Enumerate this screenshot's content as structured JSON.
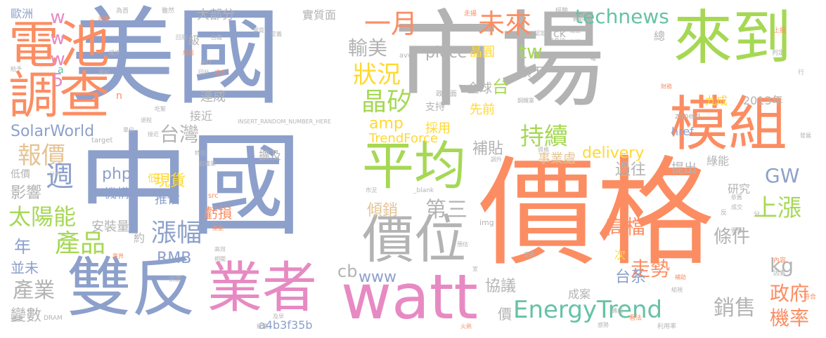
{
  "words": [
    {
      "text": "美國",
      "color": "#8da0cb"
    },
    {
      "text": "市場",
      "color": "#b3b3b3"
    },
    {
      "text": "價格",
      "color": "#fc8d62"
    },
    {
      "text": "中國",
      "color": "#8da0cb"
    },
    {
      "text": "雙反",
      "color": "#8da0cb"
    },
    {
      "text": "業者",
      "color": "#e78ac3"
    },
    {
      "text": "watt",
      "color": "#e78ac3"
    },
    {
      "text": "來到",
      "color": "#a6d854"
    },
    {
      "text": "模組",
      "color": "#fc8d62"
    },
    {
      "text": "電池",
      "color": "#fc8d62"
    },
    {
      "text": "調查",
      "color": "#fc8d62"
    },
    {
      "text": "平均",
      "color": "#a6d854"
    },
    {
      "text": "價位",
      "color": "#b3b3b3"
    },
    {
      "text": "EnergyTrend",
      "color": "#66c2a5"
    },
    {
      "text": "一月",
      "color": "#fc8d62"
    },
    {
      "text": "未來",
      "color": "#fc8d62"
    },
    {
      "text": "technews",
      "color": "#66c2a5"
    },
    {
      "text": "www5",
      "color": "#e78ac3"
    },
    {
      "text": "輸美",
      "color": "#b3b3b3"
    },
    {
      "text": "狀況",
      "color": "#ffd92f"
    },
    {
      "text": "晶矽",
      "color": "#a6d854"
    },
    {
      "text": "SolarWorld",
      "color": "#8da0cb"
    },
    {
      "text": "台灣",
      "color": "#b3b3b3"
    },
    {
      "text": "報價",
      "color": "#e5c494"
    },
    {
      "text": "週",
      "color": "#8da0cb"
    },
    {
      "text": "持續",
      "color": "#a6d854"
    },
    {
      "text": "amp",
      "color": "#ffd92f"
    },
    {
      "text": "delivery",
      "color": "#ffd92f"
    },
    {
      "text": "GW",
      "color": "#8da0cb"
    },
    {
      "text": "kg",
      "color": "#b3b3b3"
    },
    {
      "text": "上漲",
      "color": "#a6d854"
    },
    {
      "text": "太陽能",
      "color": "#a6d854"
    },
    {
      "text": "產品",
      "color": "#a6d854"
    },
    {
      "text": "漲幅",
      "color": "#8da0cb"
    },
    {
      "text": "產業",
      "color": "#b3b3b3"
    },
    {
      "text": "銷售",
      "color": "#b3b3b3"
    },
    {
      "text": "政府",
      "color": "#fc8d62"
    },
    {
      "text": "機率",
      "color": "#fc8d62"
    },
    {
      "text": "高檔",
      "color": "#fc8d62"
    },
    {
      "text": "走勢",
      "color": "#fc8d62"
    },
    {
      "text": "條件",
      "color": "#b3b3b3"
    },
    {
      "text": "piece",
      "color": "#b3b3b3"
    },
    {
      "text": "第三",
      "color": "#b3b3b3"
    },
    {
      "text": "傾銷",
      "color": "#e5c494"
    },
    {
      "text": "補貼",
      "color": "#b3b3b3"
    },
    {
      "text": "協議",
      "color": "#b3b3b3"
    },
    {
      "text": "www",
      "color": "#8da0cb"
    },
    {
      "text": "cb",
      "color": "#b3b3b3"
    },
    {
      "text": "RMB",
      "color": "#8da0cb"
    },
    {
      "text": "影響",
      "color": "#b3b3b3"
    },
    {
      "text": "變數",
      "color": "#b3b3b3"
    },
    {
      "text": "php",
      "color": "#8da0cb"
    },
    {
      "text": "過往",
      "color": "#b3b3b3"
    },
    {
      "text": "台系",
      "color": "#8da0cb"
    },
    {
      "text": "現貨",
      "color": "#ffd92f"
    },
    {
      "text": "推估",
      "color": "#8da0cb"
    },
    {
      "text": "機構",
      "color": "#8da0cb"
    },
    {
      "text": "虧損",
      "color": "#fc8d62"
    },
    {
      "text": "大部分",
      "color": "#b3b3b3"
    },
    {
      "text": "晶圓",
      "color": "#ffd92f"
    },
    {
      "text": "tw",
      "color": "#a6d854"
    },
    {
      "text": "旗下",
      "color": "#b3b3b3"
    },
    {
      "text": "台",
      "color": "#a6d854"
    },
    {
      "text": "全球",
      "color": "#b3b3b3"
    },
    {
      "text": "先前",
      "color": "#ffd92f"
    },
    {
      "text": "採用",
      "color": "#ffd92f"
    },
    {
      "text": "支持",
      "color": "#b3b3b3"
    },
    {
      "text": "TrendForce",
      "color": "#ffd92f"
    },
    {
      "text": "事業處",
      "color": "#e5c494"
    },
    {
      "text": "達成",
      "color": "#b3b3b3"
    },
    {
      "text": "接近",
      "color": "#b3b3b3"
    },
    {
      "text": "擴及",
      "color": "#b3b3b3"
    },
    {
      "text": "安裝量",
      "color": "#b3b3b3"
    },
    {
      "text": "年",
      "color": "#8da0cb"
    },
    {
      "text": "並未",
      "color": "#8da0cb"
    },
    {
      "text": "綠能",
      "color": "#b3b3b3"
    },
    {
      "text": "提出",
      "color": "#b3b3b3"
    },
    {
      "text": "研究",
      "color": "#b3b3b3"
    },
    {
      "text": "成案",
      "color": "#b3b3b3"
    },
    {
      "text": "價",
      "color": "#b3b3b3"
    },
    {
      "text": "次",
      "color": "#ffd92f"
    },
    {
      "text": "a4b3f35b",
      "color": "#8da0cb"
    },
    {
      "text": "href",
      "color": "#8da0cb"
    },
    {
      "text": "九成",
      "color": "#ffd92f"
    },
    {
      "text": "2013年",
      "color": "#b3b3b3"
    },
    {
      "text": "實質面",
      "color": "#b3b3b3"
    },
    {
      "text": "ck",
      "color": "#b3b3b3"
    },
    {
      "text": "總",
      "color": "#b3b3b3"
    },
    {
      "text": "歐洲",
      "color": "#8da0cb"
    },
    {
      "text": "級",
      "color": "#b3b3b3"
    },
    {
      "text": "約",
      "color": "#b3b3b3"
    },
    {
      "text": "低價",
      "color": "#b3b3b3"
    },
    {
      "text": "低",
      "color": "#ffd92f"
    },
    {
      "text": "n",
      "color": "#fc8d62"
    },
    {
      "text": "a",
      "color": "#66c2a5"
    },
    {
      "text": "INSERT_RANDOM_NUMBER_HERE",
      "color": "#b3b3b3"
    },
    {
      "text": "target",
      "color": "#b3b3b3"
    },
    {
      "text": "_blank",
      "color": "#b3b3b3"
    },
    {
      "text": "src",
      "color": "#fc8d62"
    },
    {
      "text": "img",
      "color": "#b3b3b3"
    },
    {
      "text": "zoneid",
      "color": "#b3b3b3"
    },
    {
      "text": "avw",
      "color": "#b3b3b3"
    },
    {
      "text": "DRAM",
      "color": "#b3b3b3"
    },
    {
      "text": "政策面",
      "color": "#b3b3b3"
    },
    {
      "text": "為首",
      "color": "#b3b3b3"
    },
    {
      "text": "接近",
      "color": "#b3b3b3"
    },
    {
      "text": "雖然",
      "color": "#b3b3b3"
    },
    {
      "text": "經驗",
      "color": "#b3b3b3"
    },
    {
      "text": "走揚",
      "color": "#fc8d62"
    },
    {
      "text": "上揚",
      "color": "#fc8d62"
    },
    {
      "text": "判定",
      "color": "#b3b3b3"
    },
    {
      "text": "行",
      "color": "#b3b3b3"
    },
    {
      "text": "內容",
      "color": "#fc8d62"
    },
    {
      "text": "符合",
      "color": "#fc8d62"
    },
    {
      "text": "因素",
      "color": "#b3b3b3"
    },
    {
      "text": "分",
      "color": "#b3b3b3"
    },
    {
      "text": "反",
      "color": "#b3b3b3"
    },
    {
      "text": "利用率",
      "color": "#b3b3b3"
    },
    {
      "text": "看法",
      "color": "#fc8d62"
    },
    {
      "text": "偏多",
      "color": "#b3b3b3"
    },
    {
      "text": "能業",
      "color": "#b3b3b3"
    },
    {
      "text": "及早",
      "color": "#b3b3b3"
    },
    {
      "text": "供需",
      "color": "#b3b3b3"
    },
    {
      "text": "業界",
      "color": "#fc8d62"
    },
    {
      "text": "高效",
      "color": "#b3b3b3"
    },
    {
      "text": "相關",
      "color": "#b3b3b3"
    },
    {
      "text": "給予",
      "color": "#b3b3b3"
    },
    {
      "text": "資料",
      "color": "#b3b3b3"
    },
    {
      "text": "回升",
      "color": "#b3b3b3"
    },
    {
      "text": "成本",
      "color": "#fc8d62"
    },
    {
      "text": "局面",
      "color": "#fc8d62"
    },
    {
      "text": "出口",
      "color": "#b3b3b3"
    },
    {
      "text": "預估",
      "color": "#b3b3b3"
    },
    {
      "text": "受惠",
      "color": "#b3b3b3"
    },
    {
      "text": "優惠",
      "color": "#b3b3b3"
    },
    {
      "text": "依舊",
      "color": "#b3b3b3"
    },
    {
      "text": "成交",
      "color": "#b3b3b3"
    },
    {
      "text": "火熱",
      "color": "#fc8d62"
    },
    {
      "text": "宣",
      "color": "#b3b3b3"
    },
    {
      "text": "轉成",
      "color": "#b3b3b3"
    },
    {
      "text": "組視",
      "color": "#b3b3b3"
    },
    {
      "text": "補助",
      "color": "#fc8d62"
    },
    {
      "text": "感勢",
      "color": "#b3b3b3"
    },
    {
      "text": "市況",
      "color": "#b3b3b3"
    },
    {
      "text": "產能",
      "color": "#fc8d62"
    },
    {
      "text": "分析",
      "color": "#b3b3b3"
    },
    {
      "text": "特別",
      "color": "#b3b3b3"
    },
    {
      "text": "紡織業",
      "color": "#b3b3b3"
    },
    {
      "text": "吃緊",
      "color": "#b3b3b3"
    },
    {
      "text": "單位",
      "color": "#b3b3b3"
    },
    {
      "text": "退稅",
      "color": "#b3b3b3"
    },
    {
      "text": "緩步",
      "color": "#b3b3b3"
    },
    {
      "text": "財務",
      "color": "#fc8d62"
    },
    {
      "text": "發展",
      "color": "#b3b3b3"
    },
    {
      "text": "權益",
      "color": "#b3b3b3"
    },
    {
      "text": "太陽",
      "color": "#b3b3b3"
    },
    {
      "text": "單晶矽",
      "color": "#b3b3b3"
    },
    {
      "text": "認定",
      "color": "#b3b3b3"
    },
    {
      "text": "轉虧",
      "color": "#b3b3b3"
    },
    {
      "text": "報",
      "color": "#b3b3b3"
    },
    {
      "text": "鋼鐵業",
      "color": "#b3b3b3"
    },
    {
      "text": "資格",
      "color": "#b3b3b3"
    },
    {
      "text": "調升",
      "color": "#b3b3b3"
    },
    {
      "text": "定義",
      "color": "#b3b3b3"
    },
    {
      "text": "實質",
      "color": "#b3b3b3"
    },
    {
      "text": "台廠",
      "color": "#b3b3b3"
    },
    {
      "text": "回到",
      "color": "#b3b3b3"
    },
    {
      "text": "困難",
      "color": "#fc8d62"
    }
  ]
}
